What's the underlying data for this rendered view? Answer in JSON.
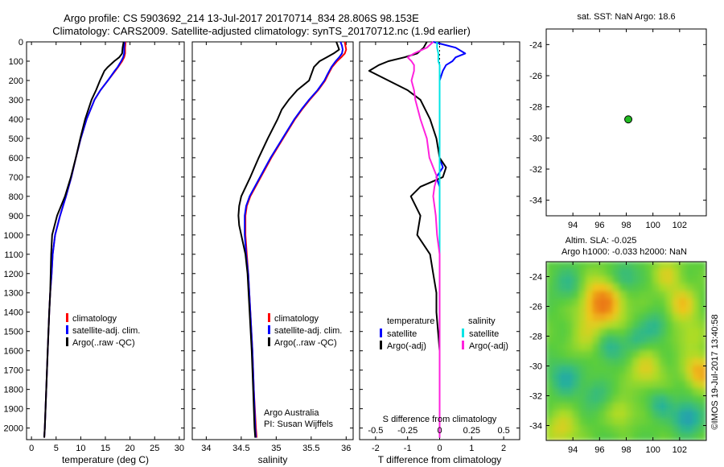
{
  "title_line1": "Argo profile: CS 5903692_214 13-Jul-2017 20170714_834 28.806S 98.153E",
  "title_line2": "Climatology: CARS2009. Satellite-adjusted climatology: synTS_20170712.nc (1.9d earlier)",
  "watermark": "©IMOS 19-Jul-2017 13:40:58",
  "colors": {
    "climatology": "#ff0000",
    "satellite": "#0000ff",
    "argo": "#000000",
    "salinity_satellite": "#00e5e5",
    "salinity_argo": "#ff22dd",
    "map_marker": "#22bb22"
  },
  "chart_data": [
    {
      "type": "line",
      "panel": "temperature",
      "xlabel": "temperature (deg C)",
      "xlim": [
        -1,
        31
      ],
      "xticks": [
        0,
        5,
        10,
        15,
        20,
        25,
        30
      ],
      "ylim": [
        2060,
        0
      ],
      "yticks": [
        0,
        100,
        200,
        300,
        400,
        500,
        600,
        700,
        800,
        900,
        1000,
        1100,
        1200,
        1300,
        1400,
        1500,
        1600,
        1700,
        1800,
        1900,
        2000
      ],
      "legend": [
        "climatology",
        "satellite-adj. clim.",
        "Argo(..raw -QC)"
      ],
      "depth": [
        0,
        30,
        60,
        80,
        100,
        130,
        150,
        200,
        250,
        300,
        400,
        500,
        600,
        700,
        800,
        900,
        1000,
        1100,
        1200,
        1300,
        1400,
        1600,
        1800,
        2000,
        2050
      ],
      "series": [
        {
          "name": "climatology",
          "color_key": "climatology",
          "values": [
            19.1,
            19.0,
            19.0,
            18.8,
            18.4,
            17.6,
            17.0,
            15.5,
            14.0,
            12.8,
            11.2,
            10.0,
            9.0,
            8.1,
            7.0,
            5.8,
            4.8,
            4.3,
            4.1,
            3.8,
            3.6,
            3.3,
            3.0,
            2.7,
            2.6
          ]
        },
        {
          "name": "satellite-adj. clim.",
          "color_key": "satellite",
          "values": [
            18.9,
            18.8,
            18.8,
            18.6,
            18.2,
            17.5,
            16.9,
            15.5,
            14.0,
            12.8,
            11.2,
            10.0,
            9.0,
            8.1,
            7.0,
            5.8,
            4.8,
            4.3,
            4.1,
            3.8,
            3.6,
            3.3,
            3.0,
            2.7,
            2.6
          ]
        },
        {
          "name": "Argo(..raw -QC)",
          "color_key": "argo",
          "values": [
            18.7,
            18.5,
            18.4,
            17.8,
            16.8,
            15.5,
            14.8,
            13.9,
            13.1,
            12.2,
            10.9,
            9.9,
            9.0,
            8.0,
            6.8,
            5.2,
            4.2,
            4.0,
            3.9,
            3.8,
            3.6,
            3.3,
            3.0,
            2.7,
            2.6
          ]
        }
      ]
    },
    {
      "type": "line",
      "panel": "salinity",
      "xlabel": "salinity",
      "xlim": [
        33.8,
        36.1
      ],
      "xticks": [
        34,
        34.5,
        35,
        35.5,
        36
      ],
      "xtick_labels": [
        "34",
        "34.5",
        "35",
        "35.5",
        "36"
      ],
      "ylim": [
        2060,
        0
      ],
      "legend": [
        "climatology",
        "satellite-adj. clim.",
        "Argo(..raw -QC)"
      ],
      "annotation": [
        "Argo Australia",
        "PI: Susan Wijffels"
      ],
      "depth": [
        0,
        20,
        40,
        60,
        80,
        100,
        130,
        170,
        200,
        250,
        300,
        350,
        400,
        500,
        600,
        700,
        800,
        850,
        900,
        950,
        1000,
        1100,
        1200,
        1400,
        1600,
        1800,
        2000,
        2050
      ],
      "series": [
        {
          "name": "climatology",
          "color_key": "climatology",
          "values": [
            35.98,
            35.99,
            36.0,
            35.98,
            35.93,
            35.87,
            35.8,
            35.74,
            35.7,
            35.6,
            35.48,
            35.37,
            35.27,
            35.1,
            34.93,
            34.78,
            34.63,
            34.58,
            34.56,
            34.56,
            34.56,
            34.58,
            34.6,
            34.63,
            34.66,
            34.68,
            34.71,
            34.72
          ]
        },
        {
          "name": "satellite-adj. clim.",
          "color_key": "satellite",
          "values": [
            35.92,
            35.94,
            35.95,
            35.94,
            35.9,
            35.85,
            35.79,
            35.73,
            35.69,
            35.59,
            35.47,
            35.36,
            35.26,
            35.09,
            34.92,
            34.77,
            34.62,
            34.57,
            34.55,
            34.55,
            34.55,
            34.57,
            34.6,
            34.63,
            34.66,
            34.68,
            34.7,
            34.71
          ]
        },
        {
          "name": "Argo(..raw -QC)",
          "color_key": "argo",
          "values": [
            35.86,
            35.88,
            35.9,
            35.82,
            35.72,
            35.62,
            35.54,
            35.5,
            35.47,
            35.3,
            35.18,
            35.08,
            35.02,
            34.88,
            34.75,
            34.63,
            34.5,
            34.47,
            34.46,
            34.47,
            34.5,
            34.56,
            34.59,
            34.62,
            34.65,
            34.67,
            34.69,
            34.7
          ]
        }
      ]
    },
    {
      "type": "line",
      "panel": "difference",
      "xlabel": "T difference from climatology",
      "xlabel_top": "S difference from climatology",
      "xlim": [
        -2.5,
        2.5
      ],
      "xticks": [
        -2,
        -1,
        0,
        1,
        2
      ],
      "xticks_top": [
        -0.5,
        -0.25,
        0,
        0.25,
        0.5
      ],
      "xticks_top_labels": [
        "-0.5",
        "-0.25",
        "0",
        "0.25",
        "0.5"
      ],
      "ylim": [
        2060,
        0
      ],
      "legend_headers": [
        "temperature",
        "salinity"
      ],
      "legend": [
        "satellite",
        "Argo(-adj)",
        "satellite",
        "Argo(-adj)"
      ],
      "depth": [
        0,
        30,
        60,
        80,
        100,
        120,
        150,
        200,
        250,
        300,
        400,
        500,
        600,
        650,
        700,
        750,
        800,
        900,
        1000,
        1100,
        1200,
        1300,
        1400,
        1600,
        1800,
        2050
      ],
      "series": [
        {
          "name": "temperature satellite",
          "color_key": "satellite",
          "values": [
            -0.2,
            0.5,
            0.8,
            0.5,
            0.4,
            0.2,
            0.1,
            0.0,
            0.0,
            0.0,
            0.0,
            0.0,
            0.0,
            0.1,
            -0.1,
            0.0,
            0.0,
            0.0,
            0.0,
            0.0,
            0.0,
            0.0,
            0.0,
            0.0,
            0.0,
            0.0
          ]
        },
        {
          "name": "temperature Argo(-adj)",
          "color_key": "argo",
          "values": [
            -0.4,
            -0.5,
            -0.7,
            -1.1,
            -1.6,
            -1.9,
            -2.2,
            -1.6,
            -1.0,
            -0.6,
            -0.3,
            -0.1,
            0.0,
            0.2,
            0.1,
            -0.6,
            -0.9,
            -0.6,
            -0.7,
            -0.3,
            -0.2,
            -0.1,
            -0.1,
            0.0,
            0.0,
            0.0
          ]
        },
        {
          "name": "salinity satellite",
          "color_key": "salinity_satellite",
          "values": [
            -0.02,
            -0.02,
            -0.01,
            -0.01,
            -0.01,
            0.0,
            0.0,
            0.0,
            0.0,
            0.0,
            0.0,
            0.0,
            0.0,
            0.0,
            0.0,
            0.0,
            0.0,
            0.0,
            0.0,
            0.0,
            0.0,
            0.0,
            0.0,
            0.0,
            0.0,
            0.0
          ]
        },
        {
          "name": "salinity Argo(-adj)",
          "color_key": "salinity_argo",
          "values": [
            -0.05,
            -0.1,
            -0.2,
            -0.25,
            -0.22,
            -0.2,
            -0.2,
            -0.22,
            -0.2,
            -0.19,
            -0.15,
            -0.1,
            -0.08,
            -0.05,
            -0.02,
            -0.04,
            -0.05,
            -0.03,
            -0.02,
            0.0,
            0.0,
            0.0,
            0.0,
            0.0,
            0.0,
            0.0
          ]
        }
      ]
    },
    {
      "type": "scatter",
      "panel": "sst_map",
      "title": "sat. SST: NaN Argo: 18.6",
      "xlim": [
        92,
        104
      ],
      "xticks": [
        94,
        96,
        98,
        100,
        102
      ],
      "ylim": [
        -35,
        -23
      ],
      "yticks": [
        -24,
        -26,
        -28,
        -30,
        -32,
        -34
      ],
      "points": [
        {
          "lon": 98.153,
          "lat": -28.806
        }
      ]
    },
    {
      "type": "heatmap",
      "panel": "sla_map",
      "title_line1": "Altim. SLA: -0.025",
      "title_line2": "Argo h1000: -0.033 h2000: NaN",
      "xlim": [
        92,
        104
      ],
      "xticks": [
        94,
        96,
        98,
        100,
        102
      ],
      "ylim": [
        -35,
        -23
      ],
      "yticks": [
        -24,
        -26,
        -28,
        -30,
        -32,
        -34
      ],
      "base_value": 0.0,
      "blobs": [
        {
          "lon": 96.2,
          "lat": -25.8,
          "value": 1.0,
          "radius": 1.2
        },
        {
          "lon": 102.2,
          "lat": -25.9,
          "value": 0.6,
          "radius": 0.8
        },
        {
          "lon": 99.5,
          "lat": -30.3,
          "value": 0.5,
          "radius": 0.9
        },
        {
          "lon": 103.6,
          "lat": -30.4,
          "value": 0.8,
          "radius": 0.8
        },
        {
          "lon": 93.2,
          "lat": -34.3,
          "value": 0.5,
          "radius": 0.9
        },
        {
          "lon": 101.1,
          "lat": -23.9,
          "value": 0.45,
          "radius": 0.8
        },
        {
          "lon": 97.7,
          "lat": -33.2,
          "value": 0.4,
          "radius": 0.7
        },
        {
          "lon": 102.8,
          "lat": -28.0,
          "value": 0.35,
          "radius": 0.8
        },
        {
          "lon": 95.0,
          "lat": -28.4,
          "value": 0.3,
          "radius": 0.9
        },
        {
          "lon": 102.6,
          "lat": -33.5,
          "value": -0.85,
          "radius": 0.7
        },
        {
          "lon": 93.5,
          "lat": -30.8,
          "value": -0.6,
          "radius": 0.8
        },
        {
          "lon": 96.8,
          "lat": -28.8,
          "value": -0.55,
          "radius": 0.7
        },
        {
          "lon": 97.9,
          "lat": -24.1,
          "value": -0.55,
          "radius": 0.7
        },
        {
          "lon": 100.2,
          "lat": -27.4,
          "value": -0.45,
          "radius": 0.7
        },
        {
          "lon": 93.8,
          "lat": -24.6,
          "value": -0.45,
          "radius": 0.8
        },
        {
          "lon": 100.6,
          "lat": -32.6,
          "value": -0.5,
          "radius": 0.6
        },
        {
          "lon": 98.7,
          "lat": -28.2,
          "value": -0.4,
          "radius": 0.6
        },
        {
          "lon": 95.7,
          "lat": -32.0,
          "value": -0.35,
          "radius": 0.7
        }
      ]
    }
  ]
}
